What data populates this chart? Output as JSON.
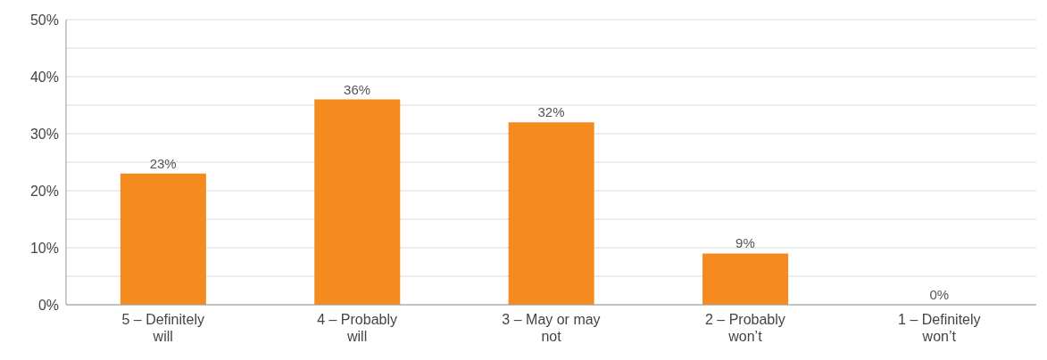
{
  "chart_data": {
    "type": "bar",
    "categories": [
      "5 – Definitely will",
      "4 – Probably will",
      "3 – May or may not",
      "2 – Probably won’t",
      "1 – Definitely won’t"
    ],
    "values": [
      23,
      36,
      32,
      9,
      0
    ],
    "value_labels": [
      "23%",
      "36%",
      "32%",
      "9%",
      "0%"
    ],
    "color": "#f58a1f",
    "ylim": [
      0,
      50
    ],
    "yticks": [
      {
        "value": 0,
        "label": "0%"
      },
      {
        "value": 5,
        "label": null
      },
      {
        "value": 10,
        "label": "10%"
      },
      {
        "value": 15,
        "label": null
      },
      {
        "value": 20,
        "label": "20%"
      },
      {
        "value": 25,
        "label": null
      },
      {
        "value": 30,
        "label": "30%"
      },
      {
        "value": 35,
        "label": null
      },
      {
        "value": 40,
        "label": "40%"
      },
      {
        "value": 45,
        "label": null
      },
      {
        "value": 50,
        "label": "50%"
      }
    ],
    "grid": "y"
  }
}
